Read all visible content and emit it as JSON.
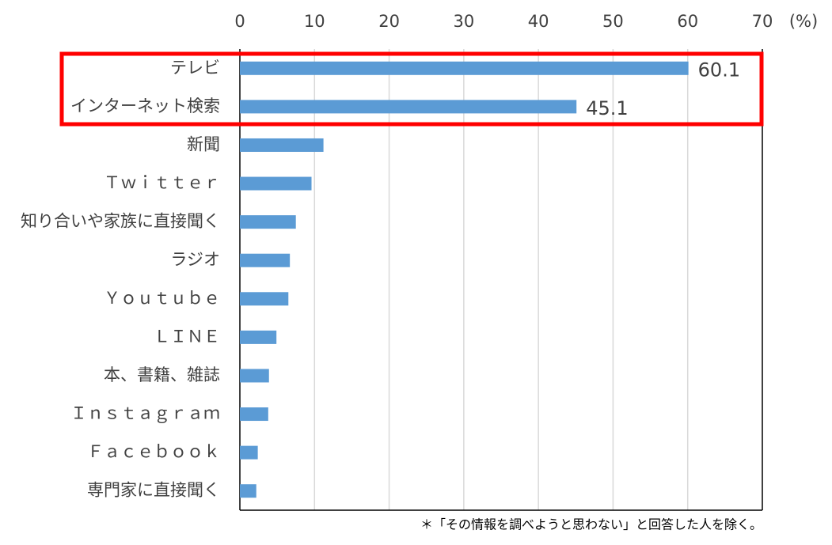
{
  "chart_data": {
    "type": "hbar",
    "categories": [
      "テレビ",
      "インターネット検索",
      "新聞",
      "Ｔｗｉｔｔｅｒ",
      "知り合いや家族に直接聞く",
      "ラジオ",
      "Ｙｏｕｔｕｂｅ",
      "ＬＩＮＥ",
      "本、書籍、雑誌",
      "Ｉｎｓｔａｇｒａｍ",
      "Ｆａｃｅｂｏｏｋ",
      "専門家に直接聞く"
    ],
    "values": [
      60.1,
      45.1,
      11.2,
      9.6,
      7.5,
      6.7,
      6.5,
      4.9,
      3.9,
      3.8,
      2.4,
      2.2
    ],
    "value_labels": [
      "60.1",
      "45.1",
      null,
      null,
      null,
      null,
      null,
      null,
      null,
      null,
      null,
      null
    ],
    "color": "#5b9bd5",
    "xlim": [
      0,
      70
    ],
    "xticks": [
      0,
      10,
      20,
      30,
      40,
      50,
      60,
      70
    ],
    "x_unit": "(%)",
    "grid": true,
    "footnote": "＊「その情報を調べようと思わない」と回答した人を除く。"
  }
}
